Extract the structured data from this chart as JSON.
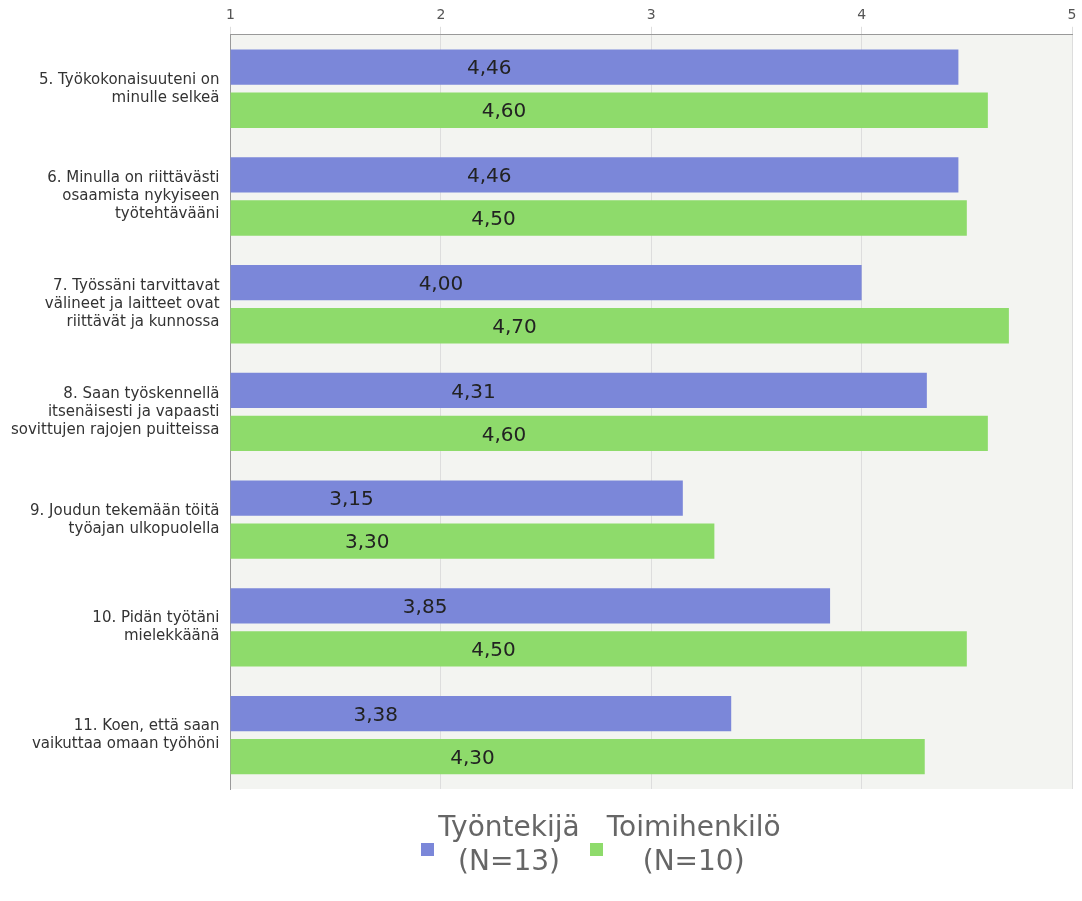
{
  "chart_data": {
    "type": "bar",
    "orientation": "horizontal",
    "categories": [
      "5. Työkokonaisuuteni on\nminulle selkeä",
      "6. Minulla on riittävästi\nosaamista nykyiseen\ntyötehtävääni",
      "7. Työssäni tarvittavat\nvälineet ja laitteet ovat\nriittävät ja kunnossa",
      "8. Saan työskennellä\nitsenäisesti ja vapaasti\nsovittujen rajojen puitteissa",
      "9. Joudun tekemään töitä\ntyöajan ulkopuolella",
      "10. Pidän työtäni\nmielekkäänä",
      "11. Koen, että saan\nvaikuttaa omaan työhöni"
    ],
    "series": [
      {
        "name": "Työntekijä\n(N=13)",
        "color": "#7b87d9",
        "values": [
          4.46,
          4.46,
          4.0,
          4.31,
          3.15,
          3.85,
          3.38
        ],
        "value_labels": [
          "4,46",
          "4,46",
          "4,00",
          "4,31",
          "3,15",
          "3,85",
          "3,38"
        ]
      },
      {
        "name": "Toimihenkilö\n(N=10)",
        "color": "#8edb6b",
        "values": [
          4.6,
          4.5,
          4.7,
          4.6,
          3.3,
          4.5,
          4.3
        ],
        "value_labels": [
          "4,60",
          "4,50",
          "4,70",
          "4,60",
          "3,30",
          "4,50",
          "4,30"
        ]
      }
    ],
    "xlim": [
      1,
      5
    ],
    "xticks": [
      1,
      2,
      3,
      4,
      5
    ],
    "grid": "x",
    "legend": "bottom"
  }
}
